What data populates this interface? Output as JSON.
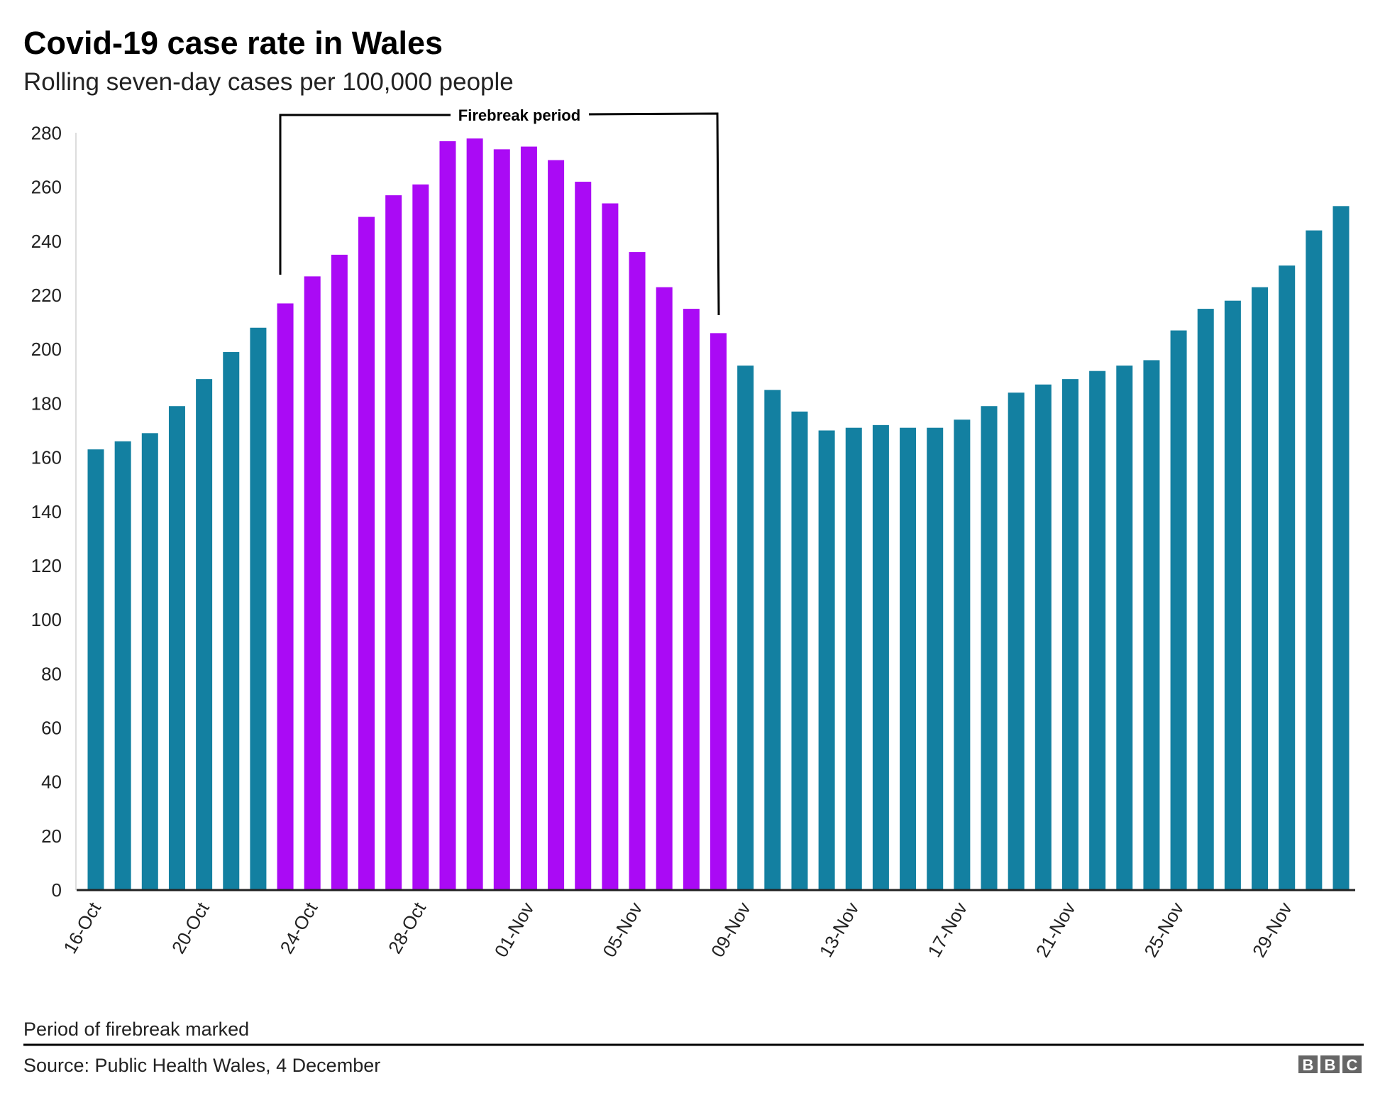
{
  "chart_data": {
    "type": "bar",
    "title": "Covid-19 case rate in Wales",
    "subtitle": "Rolling seven-day cases per 100,000 people",
    "categories": [
      "16-Oct",
      "17-Oct",
      "18-Oct",
      "19-Oct",
      "20-Oct",
      "21-Oct",
      "22-Oct",
      "23-Oct",
      "24-Oct",
      "25-Oct",
      "26-Oct",
      "27-Oct",
      "28-Oct",
      "29-Oct",
      "30-Oct",
      "31-Oct",
      "01-Nov",
      "02-Nov",
      "03-Nov",
      "04-Nov",
      "05-Nov",
      "06-Nov",
      "07-Nov",
      "08-Nov",
      "09-Nov",
      "10-Nov",
      "11-Nov",
      "12-Nov",
      "13-Nov",
      "14-Nov",
      "15-Nov",
      "16-Nov",
      "17-Nov",
      "18-Nov",
      "19-Nov",
      "20-Nov",
      "21-Nov",
      "22-Nov",
      "23-Nov",
      "24-Nov",
      "25-Nov",
      "26-Nov",
      "27-Nov",
      "28-Nov",
      "29-Nov",
      "30-Nov",
      "01-Dec"
    ],
    "values": [
      163,
      166,
      169,
      179,
      189,
      199,
      208,
      217,
      227,
      235,
      249,
      257,
      261,
      277,
      278,
      274,
      275,
      270,
      262,
      254,
      236,
      223,
      215,
      206,
      194,
      185,
      177,
      170,
      171,
      172,
      171,
      171,
      174,
      179,
      184,
      187,
      189,
      192,
      194,
      196,
      207,
      215,
      218,
      223,
      231,
      244,
      253
    ],
    "x_tick_labels": [
      "16-Oct",
      "20-Oct",
      "24-Oct",
      "28-Oct",
      "01-Nov",
      "05-Nov",
      "09-Nov",
      "13-Nov",
      "17-Nov",
      "21-Nov",
      "25-Nov",
      "29-Nov"
    ],
    "y_ticks": [
      0,
      20,
      40,
      60,
      80,
      100,
      120,
      140,
      160,
      180,
      200,
      220,
      240,
      260,
      280
    ],
    "ylim": [
      0,
      280
    ],
    "xlabel": "",
    "ylabel": "",
    "grid": false,
    "highlight": {
      "label": "Firebreak period",
      "start": "23-Oct",
      "end": "08-Nov"
    },
    "colors": {
      "default": "#1380a1",
      "highlight": "#aa0af5"
    }
  },
  "footer": {
    "note": "Period of firebreak marked",
    "source": "Source: Public Health Wales, 4 December",
    "logo": "BBC"
  }
}
